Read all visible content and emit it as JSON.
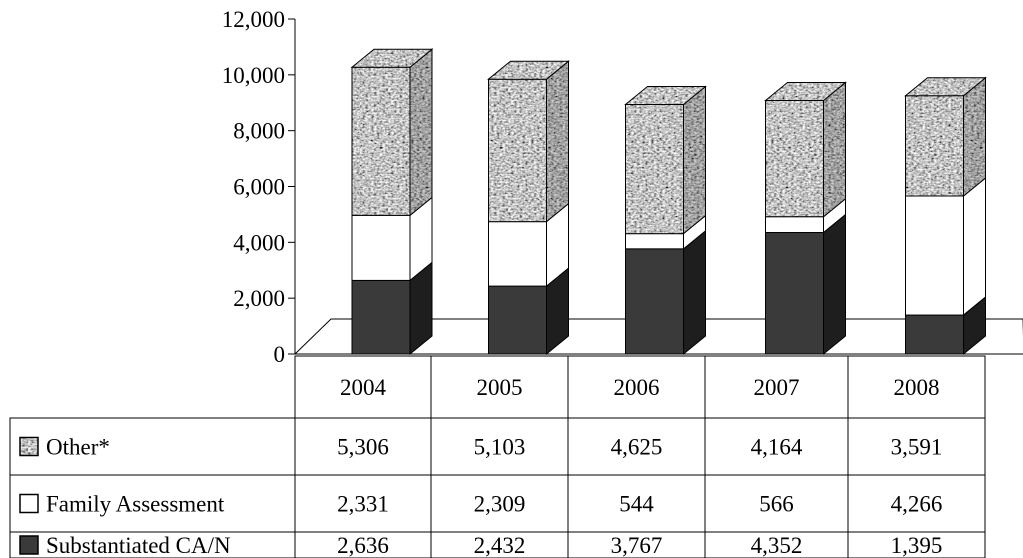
{
  "chart_data": {
    "type": "bar",
    "stacked": true,
    "style": "3d",
    "title": "",
    "xlabel": "",
    "ylabel": "",
    "ylim": [
      0,
      12000
    ],
    "yticks": [
      "0",
      "2,000",
      "4,000",
      "6,000",
      "8,000",
      "10,000",
      "12,000"
    ],
    "ytick_values": [
      0,
      2000,
      4000,
      6000,
      8000,
      10000,
      12000
    ],
    "categories": [
      "2004",
      "2005",
      "2006",
      "2007",
      "2008"
    ],
    "series": [
      {
        "name": "Substantiated CA/N",
        "values": [
          2636,
          2432,
          3767,
          4352,
          1395
        ],
        "labels": [
          "2,636",
          "2,432",
          "3,767",
          "4,352",
          "1,395"
        ],
        "color": "#3a3a3a",
        "pattern": "solid"
      },
      {
        "name": "Family Assessment",
        "values": [
          2331,
          2309,
          544,
          566,
          4266
        ],
        "labels": [
          "2,331",
          "2,309",
          "544",
          "566",
          "4,266"
        ],
        "color": "#ffffff",
        "pattern": "solid"
      },
      {
        "name": "Other*",
        "values": [
          5306,
          5103,
          4625,
          4164,
          3591
        ],
        "labels": [
          "5,306",
          "5,103",
          "4,625",
          "4,164",
          "3,591"
        ],
        "color": "#9a9a9a",
        "pattern": "granite"
      }
    ],
    "data_table": true,
    "table_row_order": [
      "Other*",
      "Family Assessment",
      "Substantiated CA/N"
    ],
    "grid": false,
    "legend": "data-table"
  }
}
